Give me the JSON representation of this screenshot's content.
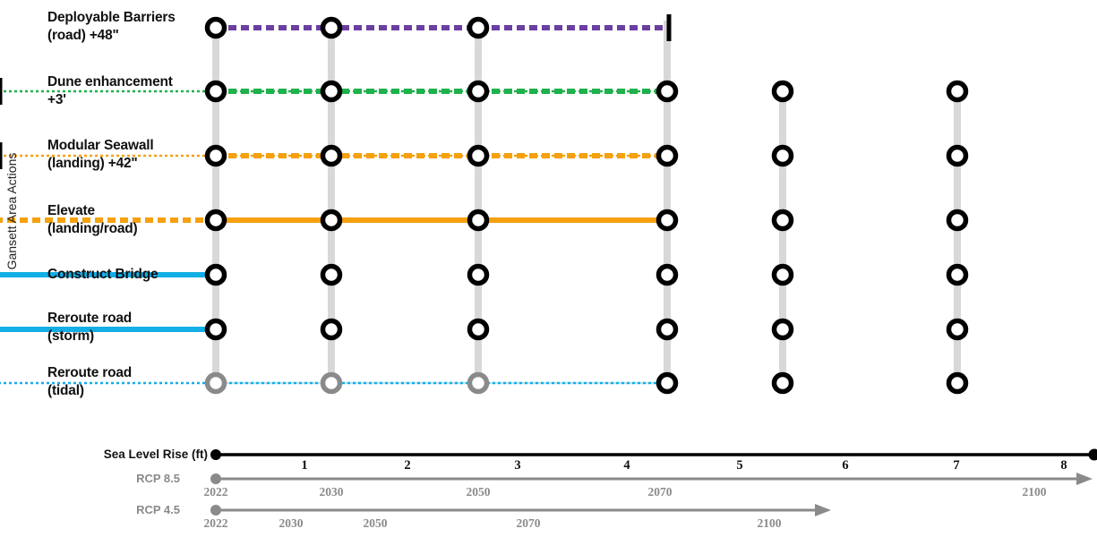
{
  "chart_data": {
    "type": "timeline",
    "ylabel": "Gansett Area Actions",
    "milestones": [
      "2022",
      "2030",
      "2050",
      "2070",
      "",
      "",
      "2100"
    ],
    "actions": [
      {
        "name": [
          "Deployable Barriers",
          "(road) +48\""
        ],
        "color": "#6b3fa0",
        "segments": [
          {
            "from": 0,
            "to": 3,
            "style": "dashed"
          }
        ],
        "points": [
          0,
          1,
          2
        ],
        "end_bar": 3,
        "points_gray": []
      },
      {
        "name": [
          "Dune enhancement",
          "+3'"
        ],
        "color": "#1fb14b",
        "segments": [
          {
            "from": 0,
            "to": 3,
            "style": "dashed"
          },
          {
            "from": 3,
            "to": 7,
            "style": "dotted"
          }
        ],
        "points": [
          0,
          1,
          2,
          3,
          4,
          5
        ],
        "end_bar": 7,
        "points_gray": []
      },
      {
        "name": [
          "Modular Seawall",
          "(landing) +42\""
        ],
        "color": "#f5a10e",
        "segments": [
          {
            "from": 0,
            "to": 3,
            "style": "dashed"
          },
          {
            "from": 3,
            "to": 7,
            "style": "dotted"
          }
        ],
        "points": [
          0,
          1,
          2,
          3,
          4,
          5
        ],
        "end_bar": 7,
        "points_gray": []
      },
      {
        "name": [
          "Elevate",
          "(landing/road)"
        ],
        "color": "#f5a10e",
        "segments": [
          {
            "from": 0,
            "to": 3,
            "style": "solid"
          },
          {
            "from": 3,
            "to": 7,
            "style": "dashed"
          }
        ],
        "points": [
          0,
          1,
          2,
          3,
          4,
          5
        ],
        "end_bar": null,
        "points_gray": []
      },
      {
        "name": [
          "Construct Bridge"
        ],
        "color": "#14aee6",
        "segments": [
          {
            "from": 0,
            "to": 7,
            "style": "solid"
          }
        ],
        "points": [
          0,
          1,
          2,
          3,
          4,
          5
        ],
        "end_bar": null,
        "points_gray": []
      },
      {
        "name": [
          "Reroute road",
          "(storm)"
        ],
        "color": "#14aee6",
        "segments": [
          {
            "from": 0,
            "to": 7,
            "style": "solid"
          }
        ],
        "points": [
          0,
          1,
          2,
          3,
          4,
          5
        ],
        "end_bar": null,
        "points_gray": []
      },
      {
        "name": [
          "Reroute road",
          "(tidal)"
        ],
        "color": "#14aee6",
        "color_faded": "#b9e6f4",
        "segments": [
          {
            "from": 0,
            "to": 3,
            "style": "faded"
          },
          {
            "from": 3,
            "to": 7,
            "style": "dotted"
          }
        ],
        "points": [
          3,
          4,
          5
        ],
        "end_bar": null,
        "points_gray": [
          0,
          1,
          2
        ]
      }
    ],
    "slr": {
      "label": "Sea Level Rise (ft)",
      "ticks": [
        "1",
        "2",
        "3",
        "4",
        "5",
        "6",
        "7",
        "8"
      ]
    },
    "scenarios": [
      {
        "label": "RCP 8.5",
        "years": [
          "2022",
          "2030",
          "2050",
          "2070",
          "2100"
        ]
      },
      {
        "label": "RCP 4.5",
        "years": [
          "2022",
          "2030",
          "2050",
          "2070",
          "2100"
        ]
      }
    ]
  }
}
